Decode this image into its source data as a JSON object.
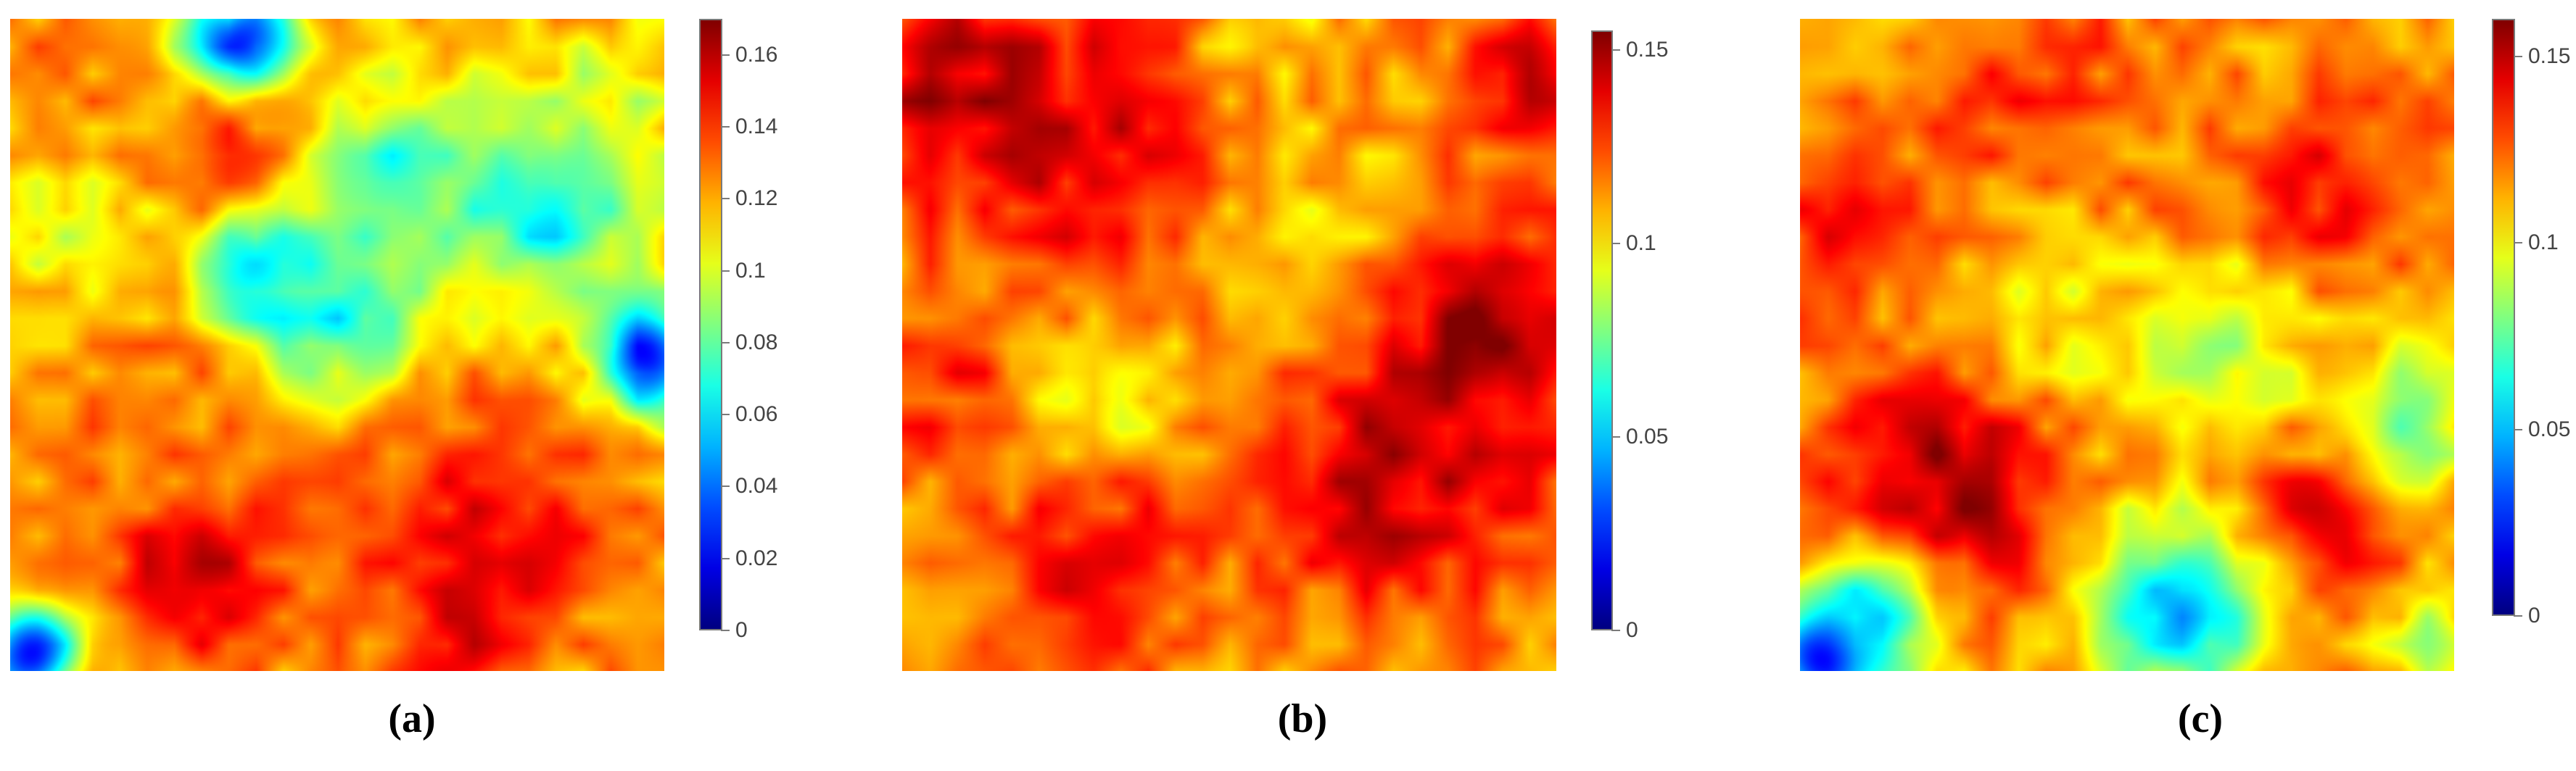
{
  "chart_data": [
    {
      "type": "heatmap",
      "panel_label": "(a)",
      "colormap": "jet",
      "color_range": [
        0,
        0.17
      ],
      "colorbar_ticks": [
        "0",
        "0.02",
        "0.04",
        "0.06",
        "0.08",
        "0.1",
        "0.12",
        "0.14",
        "0.16"
      ],
      "colorbar_tick_values": [
        0,
        0.02,
        0.04,
        0.06,
        0.08,
        0.1,
        0.12,
        0.14,
        0.16
      ],
      "blobs": [
        {
          "x": 0.36,
          "y": 0.2,
          "r": 0.1,
          "v": 0.15
        },
        {
          "x": 0.35,
          "y": 0.03,
          "r": 0.06,
          "v": 0.03
        },
        {
          "x": 0.82,
          "y": 0.28,
          "r": 0.11,
          "v": 0.06
        },
        {
          "x": 0.38,
          "y": 0.4,
          "r": 0.07,
          "v": 0.04
        },
        {
          "x": 0.98,
          "y": 0.52,
          "r": 0.06,
          "v": 0.02
        },
        {
          "x": 0.5,
          "y": 0.45,
          "r": 0.09,
          "v": 0.06
        },
        {
          "x": 0.58,
          "y": 0.25,
          "r": 0.1,
          "v": 0.07
        },
        {
          "x": 0.1,
          "y": 0.35,
          "r": 0.1,
          "v": 0.1
        },
        {
          "x": 0.28,
          "y": 0.85,
          "r": 0.09,
          "v": 0.165
        },
        {
          "x": 0.72,
          "y": 0.78,
          "r": 0.13,
          "v": 0.15
        },
        {
          "x": 0.68,
          "y": 0.96,
          "r": 0.07,
          "v": 0.15
        },
        {
          "x": 0.2,
          "y": 0.6,
          "r": 0.13,
          "v": 0.13
        },
        {
          "x": 0.03,
          "y": 0.97,
          "r": 0.05,
          "v": 0.03
        },
        {
          "x": 0.05,
          "y": 0.08,
          "r": 0.07,
          "v": 0.13
        },
        {
          "x": 0.92,
          "y": 0.1,
          "r": 0.07,
          "v": 0.1
        }
      ]
    },
    {
      "type": "heatmap",
      "panel_label": "(b)",
      "colormap": "jet",
      "color_range": [
        0,
        0.155
      ],
      "colorbar_ticks": [
        "0",
        "0.05",
        "0.1",
        "0.15"
      ],
      "colorbar_tick_values": [
        0,
        0.05,
        0.1,
        0.15
      ],
      "blobs": [
        {
          "x": 0.08,
          "y": 0.1,
          "r": 0.12,
          "v": 0.15
        },
        {
          "x": 0.3,
          "y": 0.2,
          "r": 0.16,
          "v": 0.14
        },
        {
          "x": 0.88,
          "y": 0.48,
          "r": 0.13,
          "v": 0.155
        },
        {
          "x": 0.75,
          "y": 0.7,
          "r": 0.15,
          "v": 0.145
        },
        {
          "x": 0.3,
          "y": 0.6,
          "r": 0.09,
          "v": 0.08
        },
        {
          "x": 0.62,
          "y": 0.3,
          "r": 0.12,
          "v": 0.105
        },
        {
          "x": 0.3,
          "y": 0.85,
          "r": 0.15,
          "v": 0.135
        },
        {
          "x": 0.95,
          "y": 0.08,
          "r": 0.08,
          "v": 0.14
        },
        {
          "x": 0.55,
          "y": 0.02,
          "r": 0.07,
          "v": 0.1
        },
        {
          "x": 0.5,
          "y": 0.97,
          "r": 0.08,
          "v": 0.11
        },
        {
          "x": 0.05,
          "y": 0.55,
          "r": 0.1,
          "v": 0.13
        }
      ]
    },
    {
      "type": "heatmap",
      "panel_label": "(c)",
      "colormap": "jet",
      "color_range": [
        0,
        0.16
      ],
      "colorbar_ticks": [
        "0",
        "0.05",
        "0.1",
        "0.15"
      ],
      "colorbar_tick_values": [
        0,
        0.05,
        0.1,
        0.15
      ],
      "blobs": [
        {
          "x": 0.22,
          "y": 0.72,
          "r": 0.13,
          "v": 0.155
        },
        {
          "x": 0.78,
          "y": 0.78,
          "r": 0.1,
          "v": 0.15
        },
        {
          "x": 0.1,
          "y": 0.92,
          "r": 0.08,
          "v": 0.06
        },
        {
          "x": 0.03,
          "y": 0.98,
          "r": 0.05,
          "v": 0.02
        },
        {
          "x": 0.58,
          "y": 0.9,
          "r": 0.1,
          "v": 0.05
        },
        {
          "x": 0.62,
          "y": 0.48,
          "r": 0.1,
          "v": 0.08
        },
        {
          "x": 0.92,
          "y": 0.62,
          "r": 0.08,
          "v": 0.08
        },
        {
          "x": 0.35,
          "y": 0.1,
          "r": 0.12,
          "v": 0.135
        },
        {
          "x": 0.8,
          "y": 0.25,
          "r": 0.1,
          "v": 0.14
        },
        {
          "x": 0.5,
          "y": 0.25,
          "r": 0.11,
          "v": 0.12
        },
        {
          "x": 0.05,
          "y": 0.3,
          "r": 0.09,
          "v": 0.14
        },
        {
          "x": 0.4,
          "y": 0.45,
          "r": 0.09,
          "v": 0.1
        },
        {
          "x": 0.97,
          "y": 0.95,
          "r": 0.06,
          "v": 0.09
        }
      ]
    }
  ]
}
